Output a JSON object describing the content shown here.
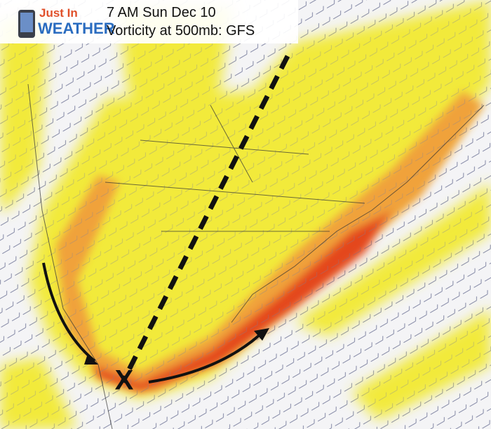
{
  "logo": {
    "line1": "Just In",
    "line2": "WEATHER"
  },
  "header": {
    "time": "7 AM Sun Dec 10",
    "product": "Vorticity at 500mb: GFS"
  },
  "annotations": {
    "center": "X"
  }
}
